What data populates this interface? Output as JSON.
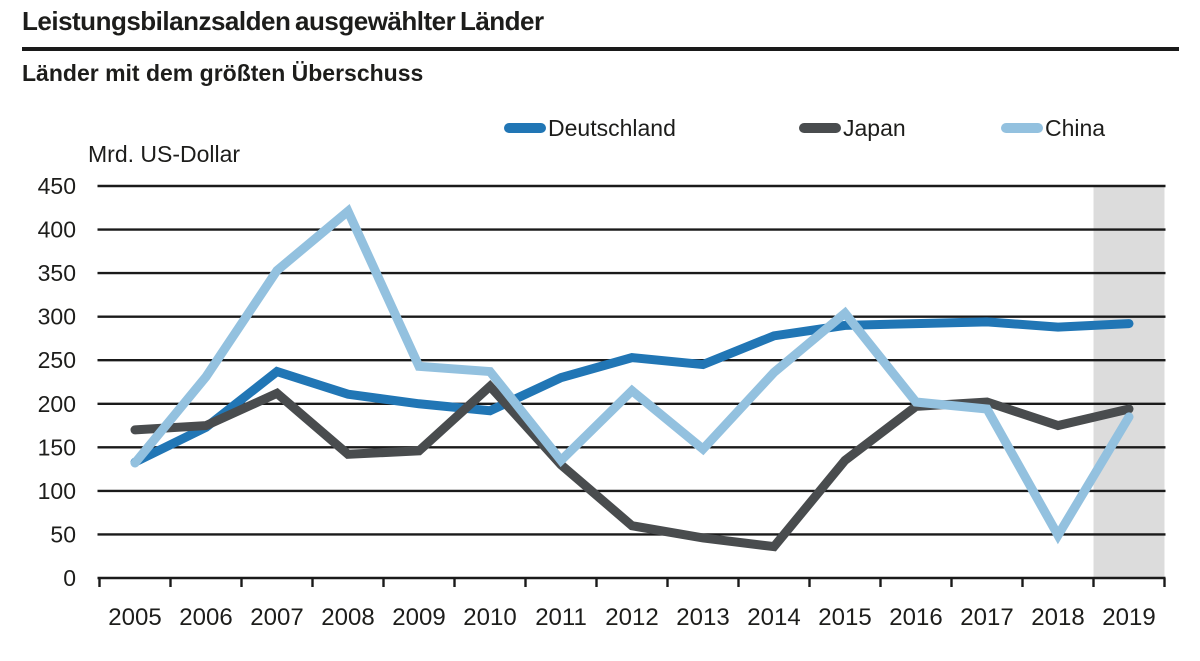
{
  "header": {
    "title": "Leistungsbilanzsalden ausgewählter Länder",
    "subtitle": "Länder mit dem größten Überschuss"
  },
  "chart_data": {
    "type": "line",
    "title": "Leistungsbilanzsalden ausgewählter Länder",
    "subtitle": "Länder mit dem größten Überschuss",
    "ylabel": "Mrd. US-Dollar",
    "xlabel": "",
    "categories": [
      "2005",
      "2006",
      "2007",
      "2008",
      "2009",
      "2010",
      "2011",
      "2012",
      "2013",
      "2014",
      "2015",
      "2016",
      "2017",
      "2018",
      "2019"
    ],
    "series": [
      {
        "name": "Deutschland",
        "color": "#2176b5",
        "values": [
          133,
          173,
          237,
          211,
          200,
          192,
          230,
          253,
          245,
          278,
          290,
          292,
          294,
          288,
          292
        ]
      },
      {
        "name": "Japan",
        "color": "#494c4e",
        "values": [
          170,
          175,
          212,
          142,
          146,
          220,
          130,
          60,
          46,
          36,
          135,
          197,
          202,
          175,
          194
        ]
      },
      {
        "name": "China",
        "color": "#93c1df",
        "values": [
          132,
          231,
          353,
          421,
          243,
          237,
          135,
          215,
          148,
          236,
          304,
          202,
          194,
          49,
          185
        ]
      }
    ],
    "ylim": [
      0,
      450
    ],
    "ytick_step": 50,
    "grid": true,
    "legend_position": "top",
    "highlight_last_category": true,
    "highlight_color": "#dcdcdc",
    "gridline_color": "#1a1a1a"
  }
}
